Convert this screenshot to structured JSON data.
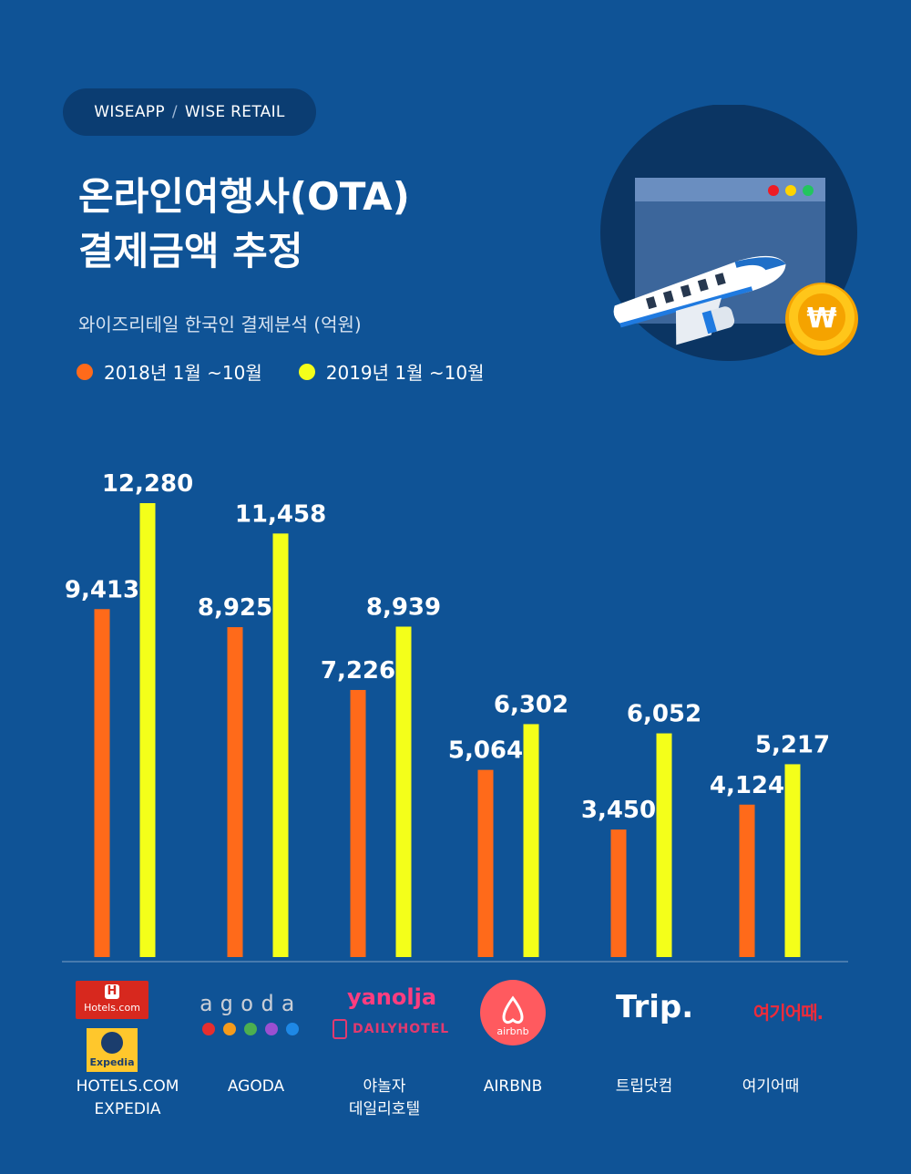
{
  "header": {
    "source_left": "WISEAPP",
    "source_sep": "/",
    "source_right": "WISE RETAIL",
    "title_line1": "온라인여행사(OTA)",
    "title_line2": "결제금액 추정",
    "subtitle": "와이즈리테일 한국인 결제분석 (억원)"
  },
  "legend": [
    {
      "label": "2018년 1월 ~10월",
      "color": "#ff6a1a"
    },
    {
      "label": "2019년 1월 ~10월",
      "color": "#f4ff1a"
    }
  ],
  "illustration": {
    "icons": [
      "airplane-icon",
      "browser-window-icon",
      "won-coin-icon"
    ],
    "coin_symbol": "₩"
  },
  "brands": {
    "hotels": "Hotels.com",
    "expedia": "Expedia",
    "agoda": "agoda",
    "yanolja": "yanolja",
    "dailyhotel": "DAILYHOTEL",
    "airbnb": "airbnb",
    "trip": "Trip.",
    "yeogi": "여기어때."
  },
  "categories": [
    {
      "lines": [
        "HOTELS.COM",
        "EXPEDIA"
      ]
    },
    {
      "lines": [
        "AGODA"
      ]
    },
    {
      "lines": [
        "야놀자",
        "데일리호텔"
      ]
    },
    {
      "lines": [
        "AIRBNB"
      ]
    },
    {
      "lines": [
        "트립닷컴"
      ]
    },
    {
      "lines": [
        "여기어때"
      ]
    }
  ],
  "chart_data": {
    "type": "bar",
    "categories": [
      "HOTELS.COM EXPEDIA",
      "AGODA",
      "야놀자 데일리호텔",
      "AIRBNB",
      "트립닷컴",
      "여기어때"
    ],
    "series": [
      {
        "name": "2018년 1월 ~10월",
        "color": "#ff6a1a",
        "values": [
          9413,
          8925,
          7226,
          5064,
          3450,
          4124
        ],
        "labels": [
          "9,413",
          "8,925",
          "7,226",
          "5,064",
          "3,450",
          "4,124"
        ]
      },
      {
        "name": "2019년 1월 ~10월",
        "color": "#f4ff1a",
        "values": [
          12280,
          11458,
          8939,
          6302,
          6052,
          5217
        ],
        "labels": [
          "12,280",
          "11,458",
          "8,939",
          "6,302",
          "6,052",
          "5,217"
        ]
      }
    ],
    "ylim": [
      0,
      14000
    ],
    "grid": false,
    "legend_position": "top-left"
  }
}
